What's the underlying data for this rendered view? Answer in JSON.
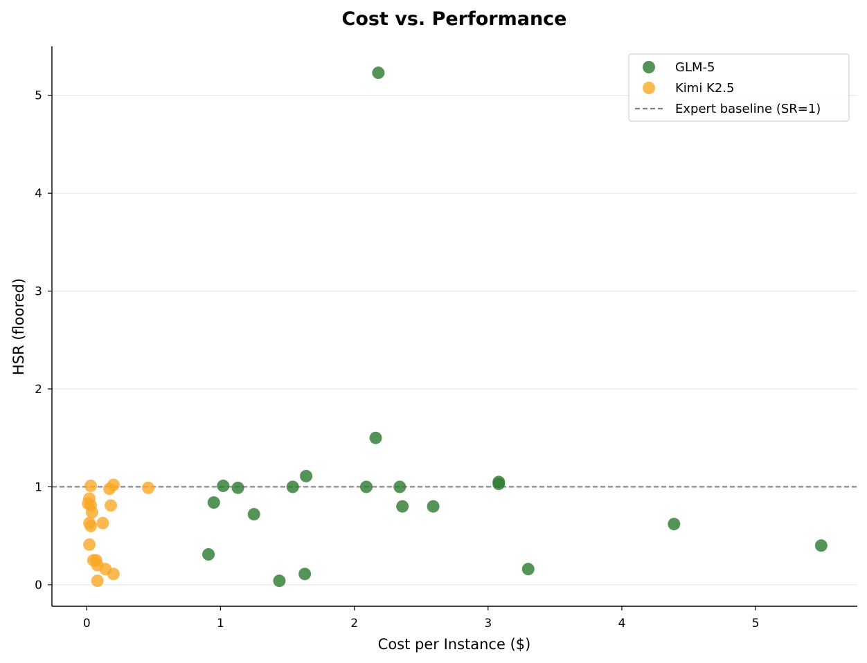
{
  "chart_data": {
    "type": "scatter",
    "title": "Cost vs. Performance",
    "xlabel": "Cost per Instance ($)",
    "ylabel": "HSR (floored)",
    "xlim": [
      -0.26,
      5.76
    ],
    "ylim": [
      -0.22,
      5.5
    ],
    "xticks": [
      0,
      1,
      2,
      3,
      4,
      5
    ],
    "yticks": [
      0,
      1,
      2,
      3,
      4,
      5
    ],
    "grid": "horizontal",
    "legend_position": "top-right",
    "series": [
      {
        "name": "GLM-5",
        "color": "#2e7d32",
        "points": [
          {
            "x": 2.18,
            "y": 5.23
          },
          {
            "x": 2.16,
            "y": 1.5
          },
          {
            "x": 1.64,
            "y": 1.11
          },
          {
            "x": 1.02,
            "y": 1.01
          },
          {
            "x": 1.13,
            "y": 0.99
          },
          {
            "x": 1.54,
            "y": 1.0
          },
          {
            "x": 2.09,
            "y": 1.0
          },
          {
            "x": 2.34,
            "y": 1.0
          },
          {
            "x": 3.08,
            "y": 1.05
          },
          {
            "x": 3.08,
            "y": 1.03
          },
          {
            "x": 0.95,
            "y": 0.84
          },
          {
            "x": 1.25,
            "y": 0.72
          },
          {
            "x": 2.36,
            "y": 0.8
          },
          {
            "x": 2.59,
            "y": 0.8
          },
          {
            "x": 4.39,
            "y": 0.62
          },
          {
            "x": 5.49,
            "y": 0.4
          },
          {
            "x": 0.91,
            "y": 0.31
          },
          {
            "x": 3.3,
            "y": 0.16
          },
          {
            "x": 1.63,
            "y": 0.11
          },
          {
            "x": 1.44,
            "y": 0.04
          }
        ]
      },
      {
        "name": "Kimi K2.5",
        "color": "#f9a825",
        "points": [
          {
            "x": 0.03,
            "y": 1.01
          },
          {
            "x": 0.2,
            "y": 1.02
          },
          {
            "x": 0.46,
            "y": 0.99
          },
          {
            "x": 0.17,
            "y": 0.98
          },
          {
            "x": 0.02,
            "y": 0.88
          },
          {
            "x": 0.01,
            "y": 0.83
          },
          {
            "x": 0.03,
            "y": 0.81
          },
          {
            "x": 0.18,
            "y": 0.81
          },
          {
            "x": 0.04,
            "y": 0.74
          },
          {
            "x": 0.02,
            "y": 0.63
          },
          {
            "x": 0.12,
            "y": 0.63
          },
          {
            "x": 0.03,
            "y": 0.6
          },
          {
            "x": 0.02,
            "y": 0.41
          },
          {
            "x": 0.05,
            "y": 0.25
          },
          {
            "x": 0.07,
            "y": 0.25
          },
          {
            "x": 0.08,
            "y": 0.2
          },
          {
            "x": 0.14,
            "y": 0.16
          },
          {
            "x": 0.2,
            "y": 0.11
          },
          {
            "x": 0.08,
            "y": 0.04
          }
        ]
      }
    ],
    "reference_line": {
      "name": "Expert baseline (SR=1)",
      "y": 1,
      "color": "#808080",
      "style": "dashed"
    }
  }
}
